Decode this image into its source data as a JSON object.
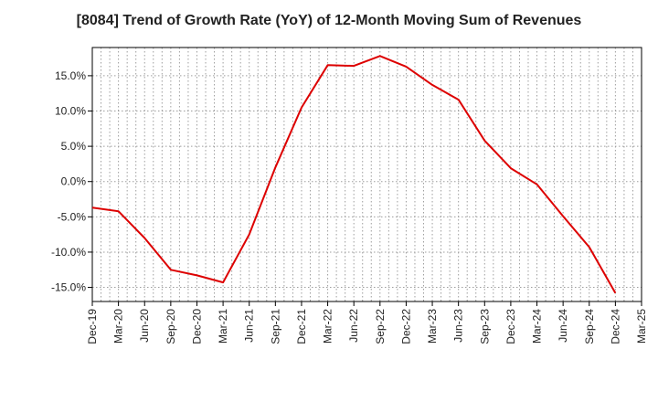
{
  "chart_data": {
    "type": "line",
    "title": "[8084]  Trend of Growth Rate (YoY) of 12-Month Moving Sum of Revenues",
    "xlabel": "",
    "ylabel": "",
    "x": [
      "Dec-19",
      "Jan-20",
      "Feb-20",
      "Mar-20",
      "Apr-20",
      "May-20",
      "Jun-20",
      "Jul-20",
      "Aug-20",
      "Sep-20",
      "Oct-20",
      "Nov-20",
      "Dec-20",
      "Jan-21",
      "Feb-21",
      "Mar-21",
      "Apr-21",
      "May-21",
      "Jun-21",
      "Jul-21",
      "Aug-21",
      "Sep-21",
      "Oct-21",
      "Nov-21",
      "Dec-21",
      "Jan-22",
      "Feb-22",
      "Mar-22",
      "Apr-22",
      "May-22",
      "Jun-22",
      "Jul-22",
      "Aug-22",
      "Sep-22",
      "Oct-22",
      "Nov-22",
      "Dec-22",
      "Jan-23",
      "Feb-23",
      "Mar-23",
      "Apr-23",
      "May-23",
      "Jun-23",
      "Jul-23",
      "Aug-23",
      "Sep-23",
      "Oct-23",
      "Nov-23",
      "Dec-23",
      "Jan-24",
      "Feb-24",
      "Mar-24",
      "Apr-24",
      "May-24",
      "Jun-24",
      "Jul-24",
      "Aug-24",
      "Sep-24",
      "Oct-24",
      "Nov-24",
      "Dec-24",
      "Jan-25",
      "Feb-25",
      "Mar-25"
    ],
    "x_tick_labels": [
      "Dec-19",
      "Mar-20",
      "Jun-20",
      "Sep-20",
      "Dec-20",
      "Mar-21",
      "Jun-21",
      "Sep-21",
      "Dec-21",
      "Mar-22",
      "Jun-22",
      "Sep-22",
      "Dec-22",
      "Mar-23",
      "Jun-23",
      "Sep-23",
      "Dec-23",
      "Mar-24",
      "Jun-24",
      "Sep-24",
      "Dec-24",
      "Mar-25"
    ],
    "series": [
      {
        "color": "#dd0000",
        "values": [
          -3.7,
          null,
          null,
          -4.2,
          null,
          null,
          -8.0,
          null,
          null,
          -12.5,
          null,
          null,
          -13.3,
          null,
          null,
          -14.3,
          null,
          null,
          -7.5,
          null,
          null,
          2.0,
          null,
          null,
          10.5,
          null,
          null,
          16.5,
          null,
          null,
          16.4,
          null,
          null,
          17.8,
          null,
          null,
          16.3,
          null,
          null,
          13.7,
          null,
          null,
          11.6,
          null,
          null,
          5.8,
          null,
          null,
          1.9,
          null,
          null,
          -0.4,
          null,
          null,
          -4.9,
          null,
          null,
          -9.3,
          null,
          null,
          -15.8,
          null,
          null,
          null
        ]
      }
    ],
    "ylim": [
      -17,
      19
    ],
    "y_ticks": [
      -15,
      -10,
      -5,
      0,
      5,
      10,
      15
    ],
    "y_tick_format": "%",
    "grid": true,
    "legend": "none",
    "colors": {
      "line": "#dd0000",
      "grid": "#9e9e9e",
      "axis": "#000000",
      "background": "#ffffff"
    }
  }
}
